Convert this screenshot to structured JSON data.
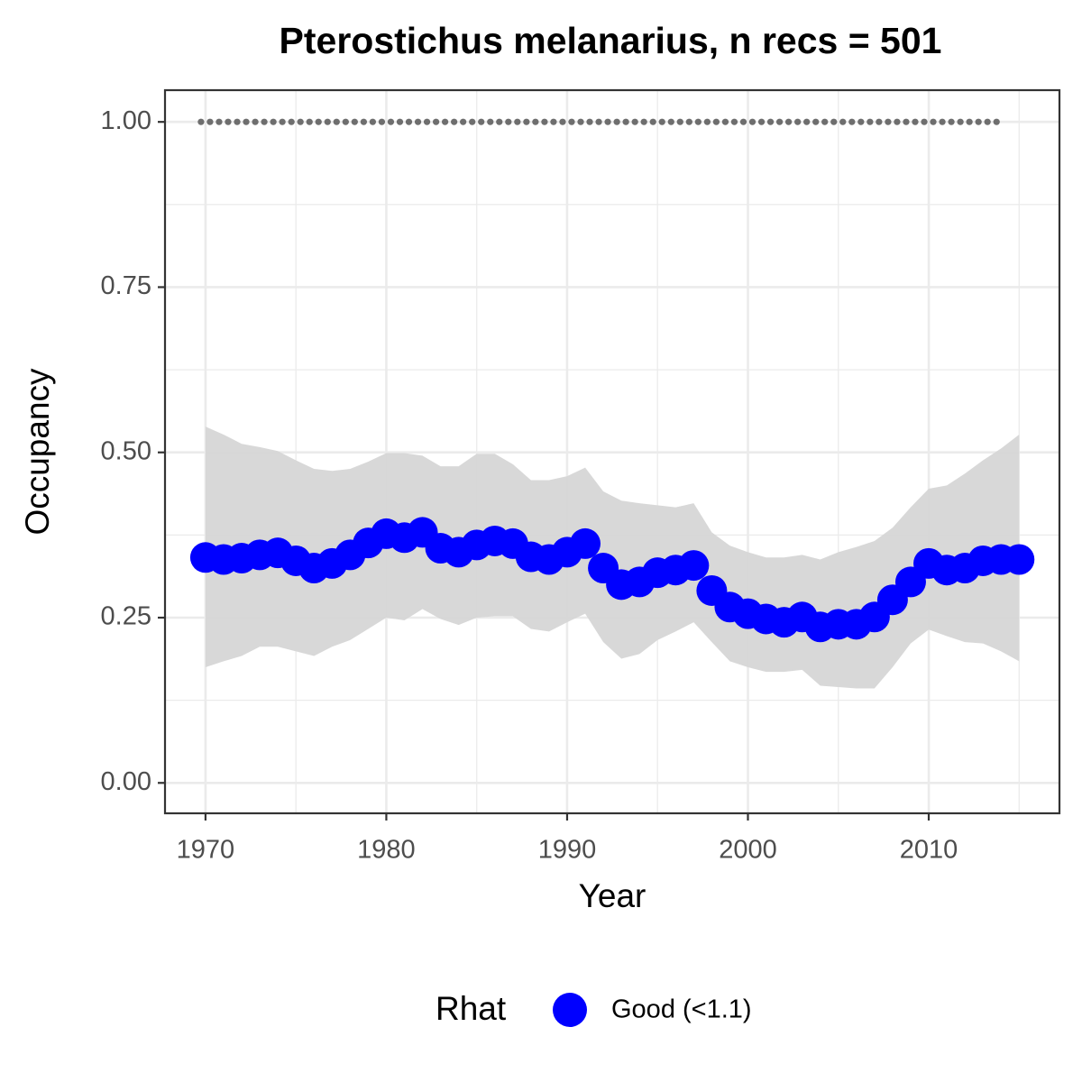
{
  "chart_data": {
    "type": "scatter",
    "title": "Pterostichus melanarius, n recs = 501",
    "x_label": "Year",
    "y_label": "Occupancy",
    "legend_title": "Rhat",
    "legend_position": "bottom",
    "grid": true,
    "xlim": [
      1967.76,
      2017.23
    ],
    "ylim": [
      -0.046,
      1.048
    ],
    "xticks": [
      1970,
      1980,
      1990,
      2000,
      2010
    ],
    "yticks": [
      {
        "value": 0,
        "label": "0.00"
      },
      {
        "value": 0.25,
        "label": "0.25"
      },
      {
        "value": 0.5,
        "label": "0.50"
      },
      {
        "value": 0.75,
        "label": "0.75"
      },
      {
        "value": 1,
        "label": "1.00"
      }
    ],
    "x": [
      1970,
      1971,
      1972,
      1973,
      1974,
      1975,
      1976,
      1977,
      1978,
      1979,
      1980,
      1981,
      1982,
      1983,
      1984,
      1985,
      1986,
      1987,
      1988,
      1989,
      1990,
      1991,
      1992,
      1993,
      1994,
      1995,
      1996,
      1997,
      1998,
      1999,
      2000,
      2001,
      2002,
      2003,
      2004,
      2005,
      2006,
      2007,
      2008,
      2009,
      2010,
      2011,
      2012,
      2013,
      2014,
      2015
    ],
    "series": [
      {
        "name": "Good (<1.1)",
        "color": "#0000ff",
        "values": [
          0.341,
          0.338,
          0.34,
          0.345,
          0.348,
          0.336,
          0.325,
          0.332,
          0.345,
          0.363,
          0.377,
          0.371,
          0.379,
          0.355,
          0.349,
          0.36,
          0.366,
          0.362,
          0.342,
          0.338,
          0.349,
          0.362,
          0.325,
          0.3,
          0.304,
          0.318,
          0.322,
          0.329,
          0.291,
          0.266,
          0.256,
          0.248,
          0.243,
          0.251,
          0.236,
          0.24,
          0.24,
          0.251,
          0.277,
          0.304,
          0.332,
          0.322,
          0.325,
          0.336,
          0.338,
          0.338
        ]
      }
    ],
    "ribbon": {
      "color": "#d6d6d6",
      "upper": [
        0.539,
        0.527,
        0.513,
        0.508,
        0.502,
        0.488,
        0.475,
        0.472,
        0.475,
        0.486,
        0.499,
        0.499,
        0.495,
        0.479,
        0.479,
        0.498,
        0.498,
        0.482,
        0.458,
        0.458,
        0.464,
        0.477,
        0.441,
        0.427,
        0.423,
        0.42,
        0.417,
        0.423,
        0.379,
        0.359,
        0.349,
        0.341,
        0.341,
        0.345,
        0.338,
        0.349,
        0.357,
        0.366,
        0.386,
        0.417,
        0.445,
        0.45,
        0.468,
        0.488,
        0.506,
        0.527
      ],
      "lower": [
        0.175,
        0.184,
        0.192,
        0.206,
        0.206,
        0.199,
        0.192,
        0.206,
        0.216,
        0.233,
        0.25,
        0.246,
        0.263,
        0.248,
        0.239,
        0.25,
        0.252,
        0.252,
        0.233,
        0.229,
        0.243,
        0.256,
        0.213,
        0.188,
        0.195,
        0.216,
        0.229,
        0.243,
        0.213,
        0.184,
        0.175,
        0.168,
        0.168,
        0.171,
        0.147,
        0.145,
        0.143,
        0.143,
        0.175,
        0.211,
        0.232,
        0.222,
        0.213,
        0.211,
        0.199,
        0.184
      ]
    },
    "records": {
      "color": "#6e6e6e",
      "x": [
        1970,
        1971,
        1972,
        1973,
        1974,
        1975,
        1976,
        1977,
        1978,
        1979,
        1980,
        1981,
        1982,
        1983,
        1984,
        1985,
        1986,
        1987,
        1988,
        1989,
        1990,
        1991,
        1992,
        1993,
        1994,
        1995,
        1996,
        1997,
        1998,
        1999,
        2000,
        2001,
        2002,
        2003,
        2004,
        2005,
        2006,
        2007,
        2008,
        2009,
        2010,
        2011,
        2012,
        2013,
        2014
      ],
      "values": [
        1,
        1,
        1,
        1,
        1,
        1,
        1,
        1,
        1,
        1,
        1,
        1,
        1,
        1,
        1,
        1,
        1,
        1,
        1,
        1,
        1,
        1,
        1,
        1,
        1,
        1,
        1,
        1,
        1,
        1,
        1,
        1,
        1,
        1,
        1,
        1,
        1,
        1,
        1,
        1,
        1,
        1,
        1,
        1,
        1
      ]
    }
  }
}
